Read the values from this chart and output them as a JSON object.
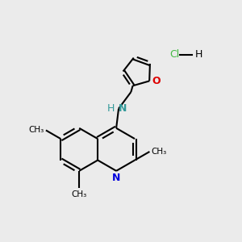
{
  "bg_color": "#ebebeb",
  "bond_color": "#000000",
  "N_color": "#0000dd",
  "NH_color": "#339999",
  "O_color": "#dd0000",
  "HCl_color": "#44bb44",
  "line_width": 1.5,
  "figsize": [
    3.0,
    3.0
  ],
  "dpi": 100,
  "xlim": [
    0,
    10
  ],
  "ylim": [
    0,
    10
  ]
}
